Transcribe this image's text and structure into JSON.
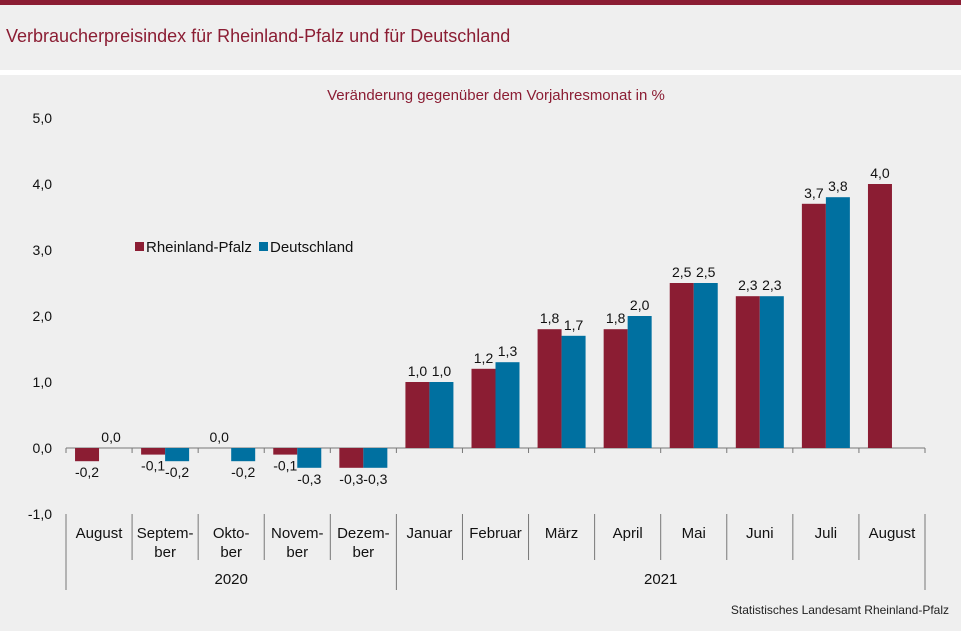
{
  "title": "Verbraucherpreisindex für Rheinland-Pfalz und für Deutschland",
  "source": "Statistisches Landesamt Rheinland-Pfalz",
  "colors": {
    "accent": "#8b1d33",
    "rlp": "#8b1d33",
    "de": "#0070a0"
  },
  "chart_data": {
    "type": "bar",
    "subtitle": "Veränderung gegenüber dem Vorjahresmonat in %",
    "ylim": [
      -1.0,
      5.0
    ],
    "yticks": [
      "-1,0",
      "0,0",
      "1,0",
      "2,0",
      "3,0",
      "4,0",
      "5,0"
    ],
    "categories": [
      [
        "August"
      ],
      [
        "Septem-",
        "ber"
      ],
      [
        "Okto-",
        "ber"
      ],
      [
        "Novem-",
        "ber"
      ],
      [
        "Dezem-",
        "ber"
      ],
      [
        "Januar"
      ],
      [
        "Februar"
      ],
      [
        "März"
      ],
      [
        "April"
      ],
      [
        "Mai"
      ],
      [
        "Juni"
      ],
      [
        "Juli"
      ],
      [
        "August"
      ]
    ],
    "years": [
      {
        "label": "2020",
        "from": 0,
        "to": 4
      },
      {
        "label": "2021",
        "from": 5,
        "to": 12
      }
    ],
    "legend": {
      "placement": "upper-left"
    },
    "series": [
      {
        "name": "Rheinland-Pfalz",
        "color": "#8b1d33",
        "values": [
          -0.2,
          -0.1,
          0.0,
          -0.1,
          -0.3,
          1.0,
          1.2,
          1.8,
          1.8,
          2.5,
          2.3,
          3.7,
          4.0
        ],
        "labels": [
          "-0,2",
          "-0,1",
          "0,0",
          "-0,1",
          "-0,3",
          "1,0",
          "1,2",
          "1,8",
          "1,8",
          "2,5",
          "2,3",
          "3,7",
          "4,0"
        ]
      },
      {
        "name": "Deutschland",
        "color": "#0070a0",
        "values": [
          0.0,
          -0.2,
          -0.2,
          -0.3,
          -0.3,
          1.0,
          1.3,
          1.7,
          2.0,
          2.5,
          2.3,
          3.8,
          null
        ],
        "labels": [
          "0,0",
          "-0,2",
          "-0,2",
          "-0,3",
          "-0,3",
          "1,0",
          "1,3",
          "1,7",
          "2,0",
          "2,5",
          "2,3",
          "3,8",
          null
        ]
      }
    ]
  }
}
